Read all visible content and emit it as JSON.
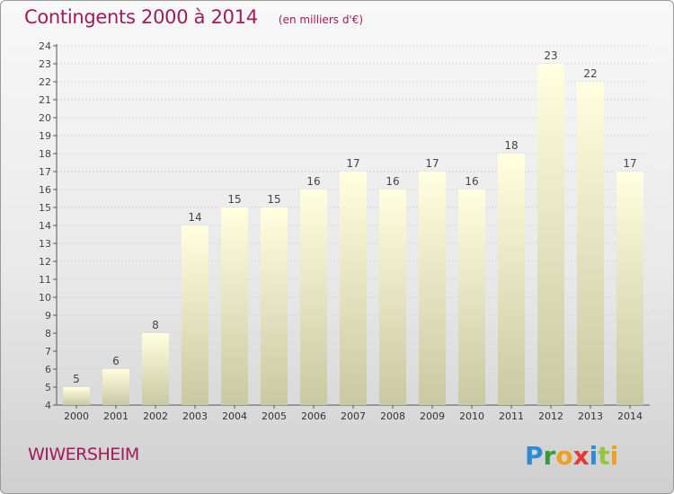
{
  "header": {
    "title": "Contingents 2000 à 2014",
    "unit": "(en milliers d'€)"
  },
  "footer": {
    "commune": "WIWERSHEIM",
    "brand": [
      {
        "ch": "P",
        "color": "#2e8bd4"
      },
      {
        "ch": "r",
        "color": "#3a9a3a"
      },
      {
        "ch": "o",
        "color": "#f0a020"
      },
      {
        "ch": "x",
        "color": "#e53935"
      },
      {
        "ch": "i",
        "color": "#2e8bd4"
      },
      {
        "ch": "t",
        "color": "#9ac440"
      },
      {
        "ch": "i",
        "color": "#f0a020"
      }
    ]
  },
  "colors": {
    "title": "#a3195b",
    "bar_top": "#ffffe0",
    "bar_bottom": "#c8c8a2"
  },
  "chart_data": {
    "type": "bar",
    "categories": [
      "2000",
      "2001",
      "2002",
      "2003",
      "2004",
      "2005",
      "2006",
      "2007",
      "2008",
      "2009",
      "2010",
      "2011",
      "2012",
      "2013",
      "2014"
    ],
    "values": [
      5,
      6,
      8,
      14,
      15,
      15,
      16,
      17,
      16,
      17,
      16,
      18,
      23,
      22,
      17
    ],
    "title": "Contingents 2000 à 2014",
    "ylim": [
      4,
      24
    ],
    "ytick_step": 1,
    "grid": true,
    "data_labels": true
  }
}
